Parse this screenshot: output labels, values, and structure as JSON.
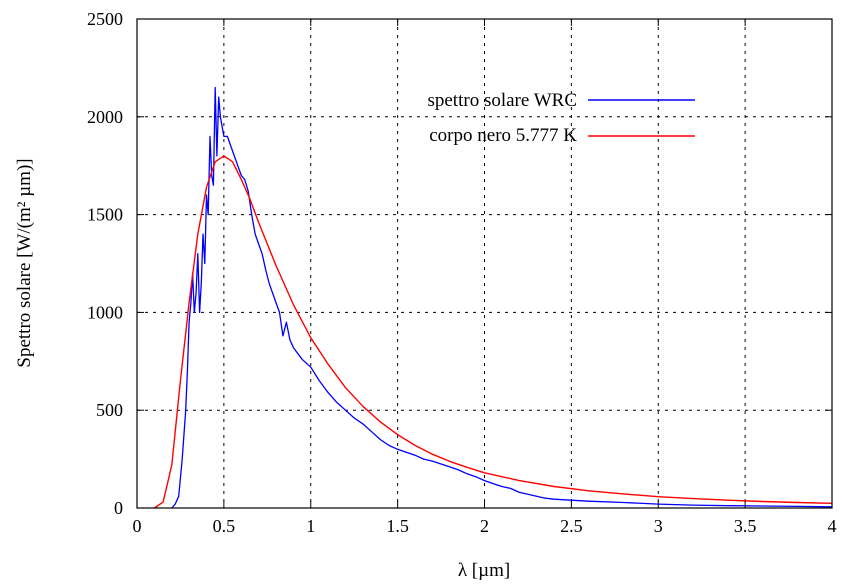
{
  "chart_data": {
    "type": "line",
    "xlabel": "λ [µm]",
    "ylabel": "Spettro solare [W/(m² µm)]",
    "xlim": [
      0,
      4
    ],
    "ylim": [
      0,
      2500
    ],
    "grid": true,
    "legend_position": "top-right",
    "x_ticks": [
      {
        "value": 0,
        "label": "0"
      },
      {
        "value": 0.5,
        "label": "0.5"
      },
      {
        "value": 1,
        "label": "1"
      },
      {
        "value": 1.5,
        "label": "1.5"
      },
      {
        "value": 2,
        "label": "2"
      },
      {
        "value": 2.5,
        "label": "2.5"
      },
      {
        "value": 3,
        "label": "3"
      },
      {
        "value": 3.5,
        "label": "3.5"
      },
      {
        "value": 4,
        "label": "4"
      }
    ],
    "y_ticks": [
      {
        "value": 0,
        "label": "0"
      },
      {
        "value": 500,
        "label": "500"
      },
      {
        "value": 1000,
        "label": "1000"
      },
      {
        "value": 1500,
        "label": "1500"
      },
      {
        "value": 2000,
        "label": "2000"
      },
      {
        "value": 2500,
        "label": "2500"
      }
    ],
    "series": [
      {
        "name": "spettro solare WRC",
        "color": "#0000ff",
        "x": [
          0.2,
          0.22,
          0.24,
          0.26,
          0.28,
          0.29,
          0.3,
          0.31,
          0.32,
          0.33,
          0.34,
          0.35,
          0.36,
          0.37,
          0.38,
          0.39,
          0.4,
          0.41,
          0.42,
          0.43,
          0.44,
          0.45,
          0.46,
          0.47,
          0.48,
          0.49,
          0.5,
          0.52,
          0.54,
          0.56,
          0.58,
          0.6,
          0.62,
          0.64,
          0.66,
          0.68,
          0.7,
          0.72,
          0.74,
          0.76,
          0.78,
          0.8,
          0.82,
          0.84,
          0.86,
          0.88,
          0.9,
          0.95,
          1.0,
          1.05,
          1.1,
          1.15,
          1.2,
          1.25,
          1.3,
          1.35,
          1.4,
          1.45,
          1.5,
          1.55,
          1.6,
          1.65,
          1.7,
          1.75,
          1.8,
          1.85,
          1.9,
          1.95,
          2.0,
          2.05,
          2.1,
          2.15,
          2.2,
          2.25,
          2.3,
          2.35,
          2.4,
          2.5,
          2.6,
          2.8,
          3.0,
          3.2,
          3.4,
          3.6,
          3.8,
          4.0
        ],
        "y": [
          0,
          20,
          60,
          250,
          500,
          700,
          950,
          1050,
          1200,
          1000,
          1100,
          1300,
          1000,
          1150,
          1400,
          1250,
          1600,
          1500,
          1900,
          1700,
          1650,
          2150,
          1800,
          2100,
          2000,
          1950,
          1900,
          1900,
          1850,
          1800,
          1750,
          1700,
          1680,
          1620,
          1500,
          1400,
          1350,
          1300,
          1220,
          1150,
          1100,
          1050,
          1000,
          880,
          950,
          860,
          820,
          760,
          720,
          650,
          590,
          540,
          500,
          460,
          430,
          390,
          350,
          320,
          300,
          285,
          270,
          250,
          240,
          225,
          210,
          195,
          175,
          160,
          140,
          125,
          110,
          100,
          80,
          70,
          60,
          50,
          45,
          40,
          35,
          28,
          20,
          15,
          12,
          10,
          8,
          6
        ]
      },
      {
        "name": "corpo nero 5.777 K",
        "color": "#ff0000",
        "x": [
          0.1,
          0.15,
          0.2,
          0.25,
          0.3,
          0.35,
          0.4,
          0.45,
          0.5,
          0.55,
          0.6,
          0.65,
          0.7,
          0.8,
          0.9,
          1.0,
          1.1,
          1.2,
          1.3,
          1.4,
          1.5,
          1.6,
          1.7,
          1.8,
          1.9,
          2.0,
          2.2,
          2.4,
          2.6,
          2.8,
          3.0,
          3.2,
          3.4,
          3.6,
          3.8,
          4.0
        ],
        "y": [
          0,
          30,
          220,
          650,
          1050,
          1400,
          1640,
          1770,
          1800,
          1770,
          1680,
          1580,
          1460,
          1240,
          1040,
          870,
          735,
          615,
          520,
          440,
          375,
          320,
          275,
          238,
          208,
          180,
          140,
          110,
          88,
          72,
          58,
          48,
          40,
          33,
          28,
          24
        ]
      }
    ]
  }
}
